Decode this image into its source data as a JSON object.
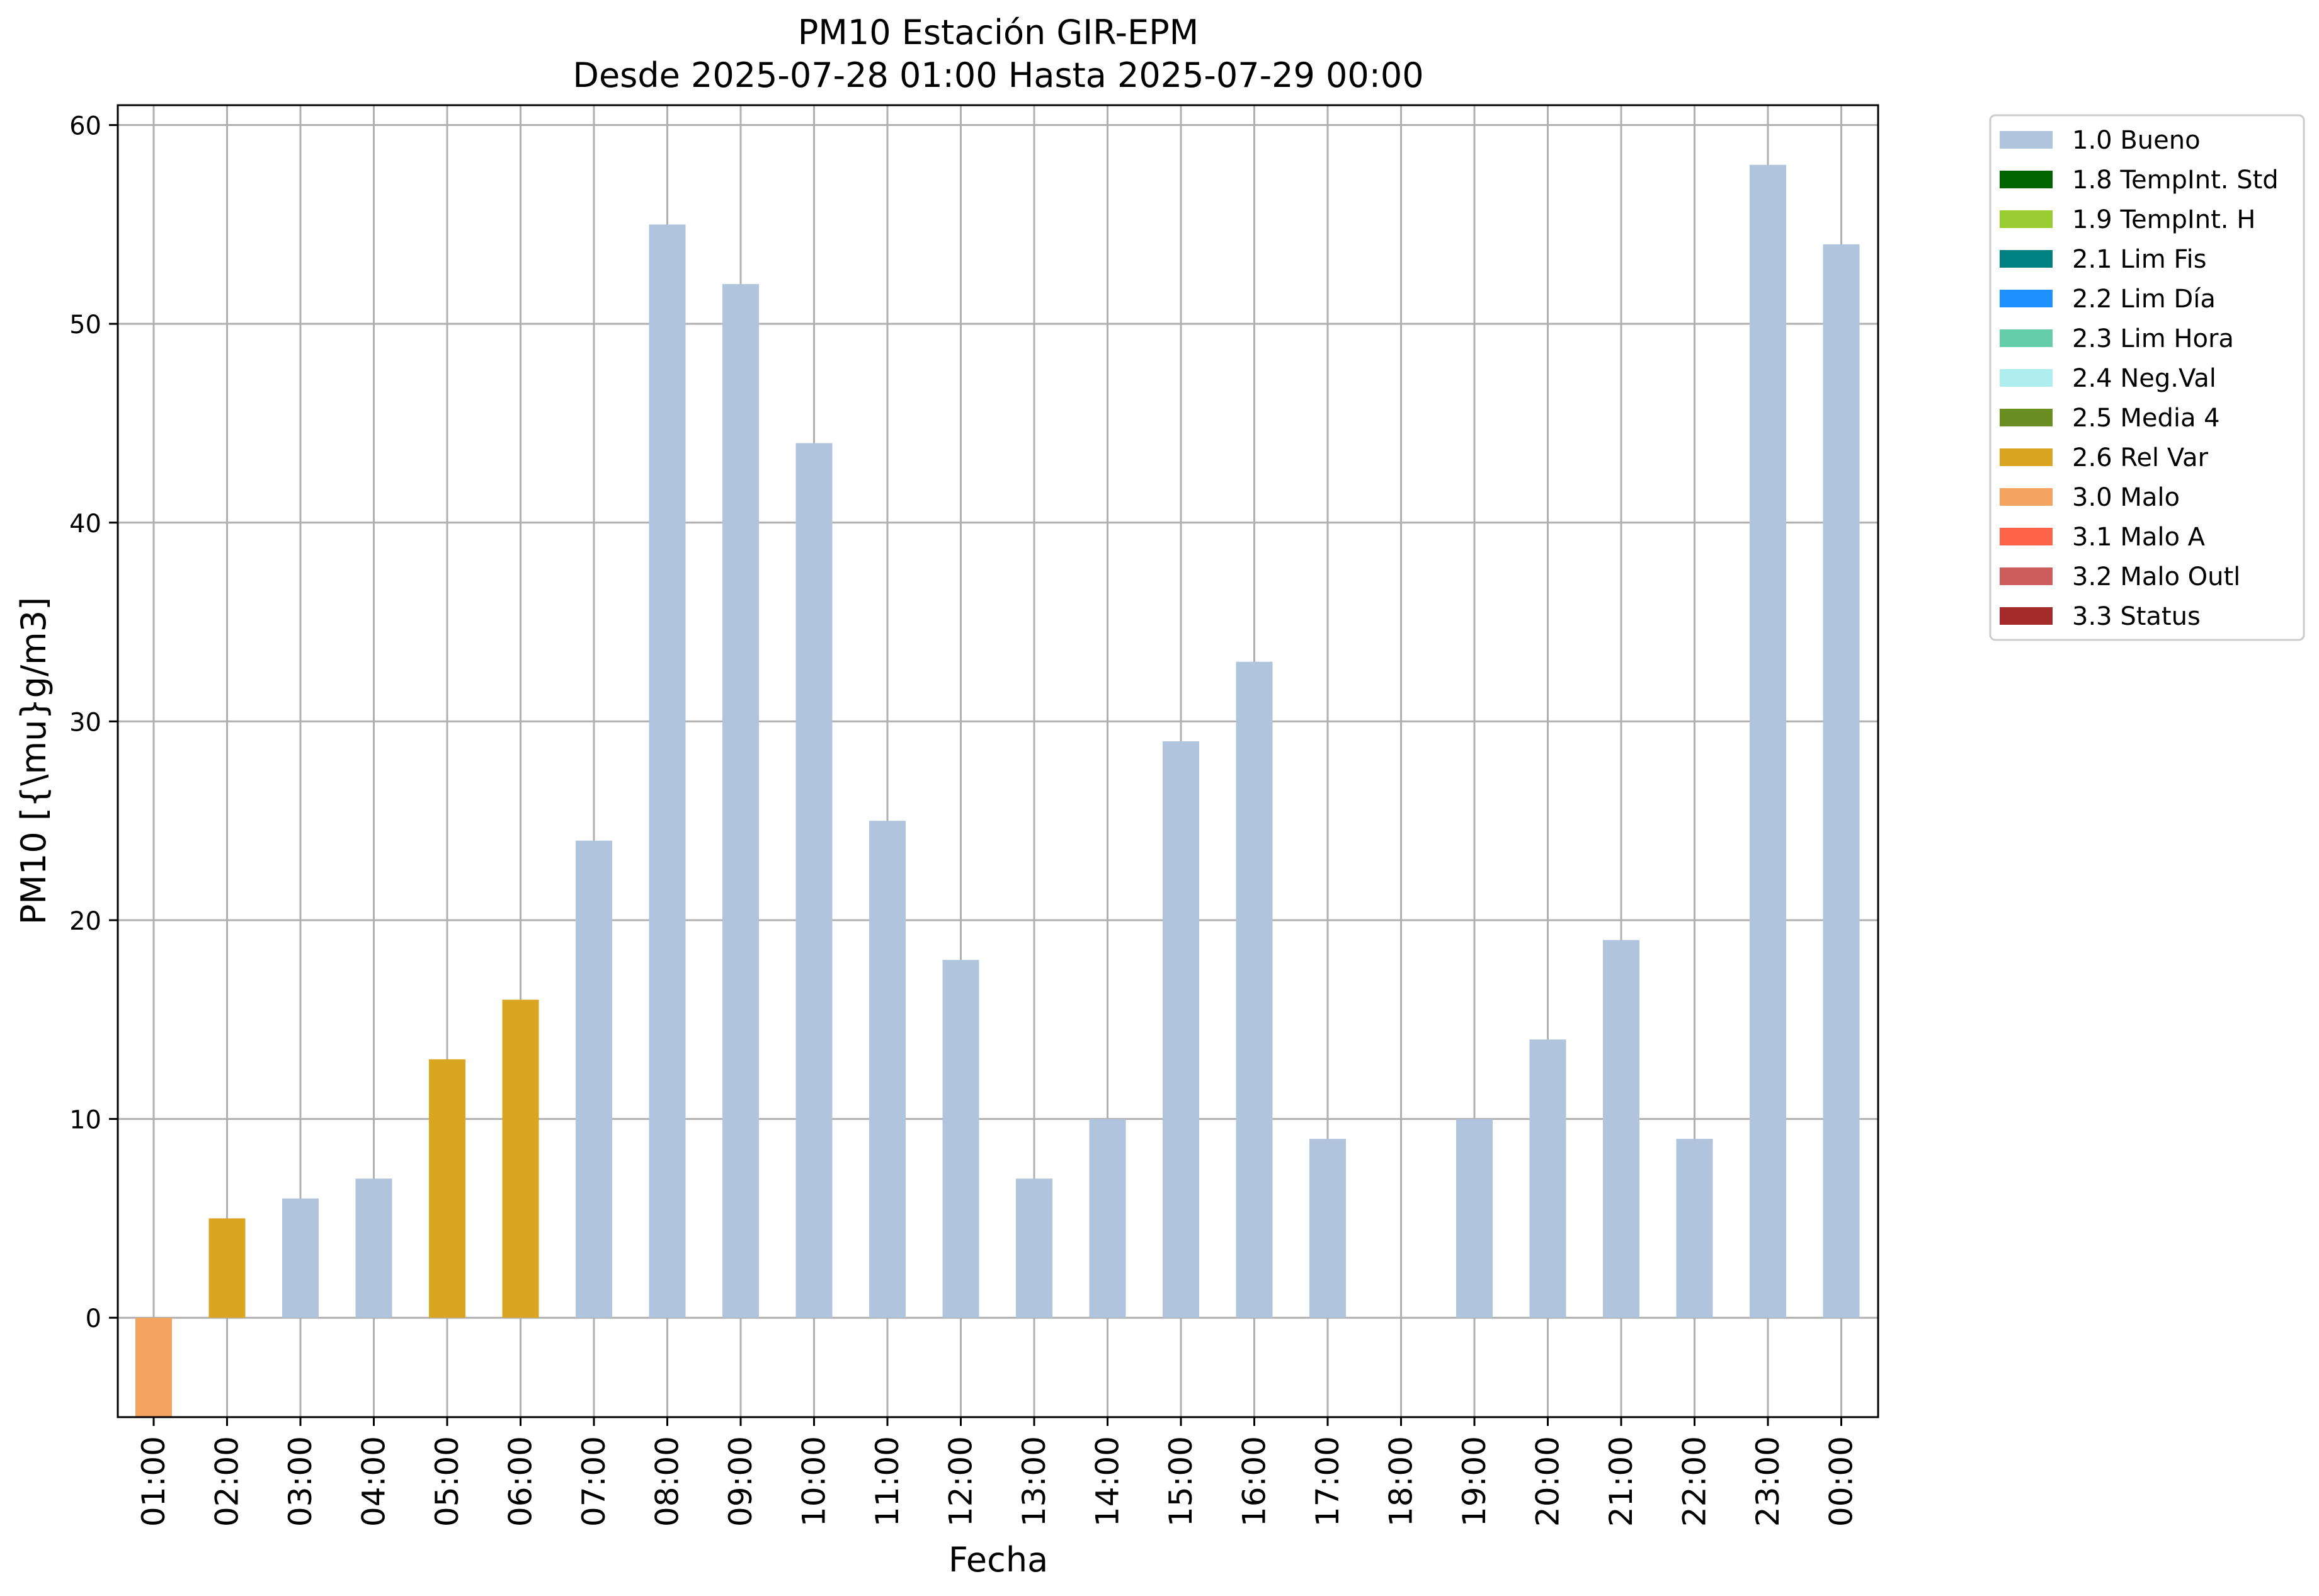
{
  "chart_data": {
    "type": "bar",
    "title": "PM10 Estación GIR-EPM",
    "subtitle": "Desde 2025-07-28 01:00 Hasta 2025-07-29 00:00",
    "xlabel": "Fecha",
    "ylabel": "PM10 [{\\mu}g/m3]",
    "ylim": [
      -5,
      61
    ],
    "yticks": [
      0,
      10,
      20,
      30,
      40,
      50,
      60
    ],
    "grid": true,
    "legend_position": "outside-top-right",
    "categories": [
      "01:00",
      "02:00",
      "03:00",
      "04:00",
      "05:00",
      "06:00",
      "07:00",
      "08:00",
      "09:00",
      "10:00",
      "11:00",
      "12:00",
      "13:00",
      "14:00",
      "15:00",
      "16:00",
      "17:00",
      "18:00",
      "19:00",
      "20:00",
      "21:00",
      "22:00",
      "23:00",
      "00:00"
    ],
    "values": [
      -5,
      5,
      6,
      7,
      13,
      16,
      24,
      55,
      52,
      44,
      25,
      18,
      7,
      10,
      29,
      33,
      9,
      null,
      10,
      14,
      19,
      9,
      58,
      54
    ],
    "flags": [
      "3.0 Malo",
      "2.6 Rel Var",
      "1.0 Bueno",
      "1.0 Bueno",
      "2.6 Rel Var",
      "2.6 Rel Var",
      "1.0 Bueno",
      "1.0 Bueno",
      "1.0 Bueno",
      "1.0 Bueno",
      "1.0 Bueno",
      "1.0 Bueno",
      "1.0 Bueno",
      "1.0 Bueno",
      "1.0 Bueno",
      "1.0 Bueno",
      "1.0 Bueno",
      null,
      "1.0 Bueno",
      "1.0 Bueno",
      "1.0 Bueno",
      "1.0 Bueno",
      "1.0 Bueno",
      "1.0 Bueno"
    ],
    "legend": [
      {
        "label": "1.0 Bueno",
        "color": "#b0c4de"
      },
      {
        "label": "1.8 TempInt. Std",
        "color": "#006400"
      },
      {
        "label": "1.9 TempInt. H",
        "color": "#9acd32"
      },
      {
        "label": "2.1 Lim Fis",
        "color": "#008080"
      },
      {
        "label": "2.2 Lim Día",
        "color": "#1e90ff"
      },
      {
        "label": "2.3 Lim Hora",
        "color": "#66cdaa"
      },
      {
        "label": "2.4 Neg.Val",
        "color": "#afeeee"
      },
      {
        "label": "2.5 Media 4",
        "color": "#6b8e23"
      },
      {
        "label": "2.6 Rel Var",
        "color": "#daa520"
      },
      {
        "label": "3.0 Malo",
        "color": "#f4a460"
      },
      {
        "label": "3.1 Malo A",
        "color": "#ff6347"
      },
      {
        "label": "3.2 Malo Outl",
        "color": "#cd5c5c"
      },
      {
        "label": "3.3 Status",
        "color": "#a52a2a"
      }
    ]
  }
}
